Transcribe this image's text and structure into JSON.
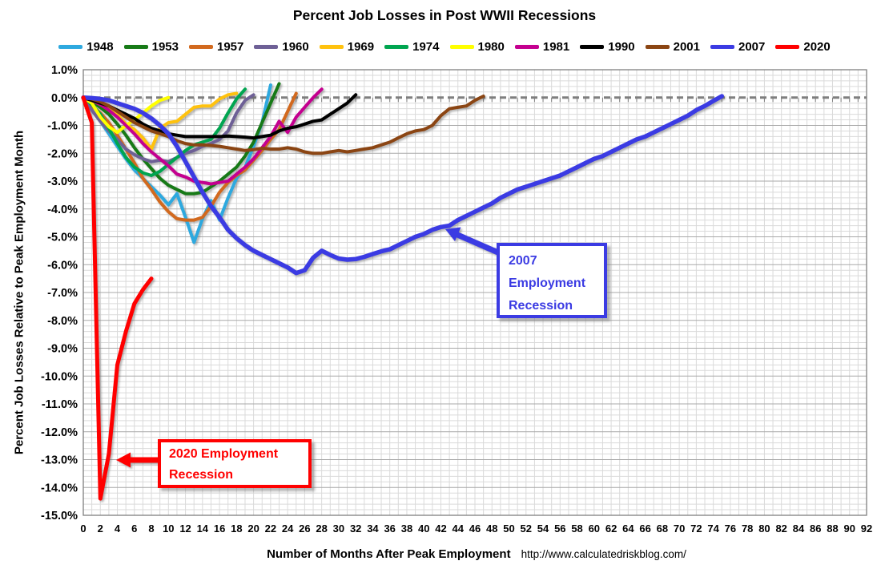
{
  "title": "Percent Job Losses in Post WWII Recessions",
  "x_axis": {
    "label": "Number of Months After Peak Employment",
    "source_url": "http://www.calculatedriskblog.com/",
    "tick_labels": [
      "0",
      "2",
      "4",
      "6",
      "8",
      "10",
      "12",
      "14",
      "16",
      "18",
      "20",
      "22",
      "24",
      "26",
      "28",
      "30",
      "32",
      "34",
      "36",
      "38",
      "40",
      "42",
      "44",
      "46",
      "48",
      "50",
      "52",
      "54",
      "56",
      "58",
      "60",
      "62",
      "64",
      "66",
      "68",
      "70",
      "72",
      "74",
      "76",
      "78",
      "80",
      "82",
      "84",
      "86",
      "88",
      "90",
      "92"
    ],
    "tick_step_months": 2
  },
  "y_axis": {
    "label": "Percent Job Losses Relative to Peak Employment Month",
    "tick_labels": [
      "1.0%",
      "0.0%",
      "-1.0%",
      "-2.0%",
      "-3.0%",
      "-4.0%",
      "-5.0%",
      "-6.0%",
      "-7.0%",
      "-8.0%",
      "-9.0%",
      "-10.0%",
      "-11.0%",
      "-12.0%",
      "-13.0%",
      "-14.0%",
      "-15.0%"
    ]
  },
  "annotations": [
    {
      "id": "2007",
      "label_lines": [
        "2007",
        "Employment",
        "Recession"
      ],
      "color": "#3B3BE3"
    },
    {
      "id": "2020",
      "label_lines": [
        "2020 Employment",
        "Recession"
      ],
      "color": "#FF0000"
    }
  ],
  "chart_data": {
    "type": "line",
    "title": "Percent Job Losses in Post WWII Recessions",
    "xlabel": "Number of Months After Peak Employment",
    "ylabel": "Percent Job Losses Relative to Peak Employment Month",
    "x_unit": "months_after_peak_employment",
    "xlim": [
      0,
      92
    ],
    "ylim": [
      -15.0,
      1.0
    ],
    "grid": true,
    "legend_position": "top",
    "zero_line": "dashed",
    "series": [
      {
        "name": "1948",
        "color": "#2EA9DF",
        "width": 4,
        "values": [
          0,
          -0.45,
          -0.85,
          -1.3,
          -1.75,
          -2.2,
          -2.6,
          -2.9,
          -3.2,
          -3.5,
          -3.85,
          -3.45,
          -4.3,
          -5.2,
          -4.35,
          -3.7,
          -4.4,
          -3.6,
          -2.9,
          -2.5,
          -1.75,
          -0.9,
          0.45
        ]
      },
      {
        "name": "1953",
        "color": "#177A17",
        "width": 4,
        "values": [
          0,
          -0.15,
          -0.35,
          -0.6,
          -0.95,
          -1.35,
          -1.8,
          -2.2,
          -2.55,
          -2.9,
          -3.15,
          -3.3,
          -3.45,
          -3.45,
          -3.4,
          -3.2,
          -3.0,
          -2.75,
          -2.5,
          -2.1,
          -1.6,
          -0.9,
          -0.2,
          0.5
        ]
      },
      {
        "name": "1957",
        "color": "#D2691E",
        "width": 4,
        "values": [
          0,
          -0.3,
          -0.55,
          -0.9,
          -1.35,
          -1.85,
          -2.35,
          -2.9,
          -3.3,
          -3.75,
          -4.1,
          -4.35,
          -4.4,
          -4.4,
          -4.3,
          -3.9,
          -3.4,
          -3.05,
          -2.8,
          -2.6,
          -2.25,
          -1.9,
          -1.5,
          -1.15,
          -0.5,
          0.15
        ]
      },
      {
        "name": "1960",
        "color": "#6E6096",
        "width": 4,
        "values": [
          0,
          -0.45,
          -0.85,
          -1.2,
          -1.5,
          -1.85,
          -2.05,
          -2.2,
          -2.3,
          -2.25,
          -2.3,
          -2.15,
          -2.0,
          -1.9,
          -1.75,
          -1.65,
          -1.5,
          -1.2,
          -0.55,
          -0.1,
          0.1
        ]
      },
      {
        "name": "1969",
        "color": "#FFC20E",
        "width": 4,
        "values": [
          0,
          -0.1,
          -0.25,
          -0.4,
          -0.6,
          -0.95,
          -1.15,
          -1.45,
          -1.85,
          -1.1,
          -0.9,
          -0.85,
          -0.6,
          -0.35,
          -0.3,
          -0.3,
          -0.05,
          0.1,
          0.15
        ]
      },
      {
        "name": "1974",
        "color": "#00A550",
        "width": 4,
        "values": [
          0,
          -0.25,
          -0.6,
          -1.1,
          -1.65,
          -2.15,
          -2.5,
          -2.7,
          -2.8,
          -2.65,
          -2.4,
          -2.15,
          -1.9,
          -1.7,
          -1.6,
          -1.5,
          -1.1,
          -0.55,
          -0.05,
          0.3
        ]
      },
      {
        "name": "1980",
        "color": "#FFFF00",
        "width": 4,
        "values": [
          0,
          -0.2,
          -0.7,
          -1.05,
          -1.25,
          -1.0,
          -0.8,
          -0.55,
          -0.3,
          -0.1,
          0.0
        ]
      },
      {
        "name": "1981",
        "color": "#C4008F",
        "width": 4,
        "values": [
          0,
          -0.1,
          -0.25,
          -0.45,
          -0.7,
          -1.0,
          -1.3,
          -1.65,
          -1.95,
          -2.2,
          -2.45,
          -2.75,
          -2.85,
          -3.0,
          -3.05,
          -3.1,
          -3.05,
          -3.0,
          -2.75,
          -2.5,
          -2.2,
          -1.8,
          -1.4,
          -0.85,
          -1.25,
          -0.7,
          -0.35,
          0.0,
          0.3
        ]
      },
      {
        "name": "1990",
        "color": "#000000",
        "width": 4,
        "values": [
          0,
          -0.1,
          -0.2,
          -0.3,
          -0.45,
          -0.6,
          -0.75,
          -0.95,
          -1.1,
          -1.2,
          -1.3,
          -1.35,
          -1.4,
          -1.4,
          -1.4,
          -1.4,
          -1.4,
          -1.38,
          -1.4,
          -1.42,
          -1.45,
          -1.4,
          -1.35,
          -1.2,
          -1.1,
          -1.05,
          -0.95,
          -0.85,
          -0.8,
          -0.6,
          -0.4,
          -0.2,
          0.1
        ]
      },
      {
        "name": "2001",
        "color": "#8B4513",
        "width": 4,
        "values": [
          0,
          -0.05,
          -0.15,
          -0.3,
          -0.5,
          -0.7,
          -0.9,
          -1.05,
          -1.2,
          -1.3,
          -1.4,
          -1.55,
          -1.65,
          -1.7,
          -1.7,
          -1.72,
          -1.75,
          -1.8,
          -1.85,
          -1.9,
          -1.87,
          -1.82,
          -1.85,
          -1.85,
          -1.8,
          -1.85,
          -1.95,
          -2.0,
          -2.0,
          -1.95,
          -1.9,
          -1.95,
          -1.9,
          -1.85,
          -1.8,
          -1.7,
          -1.6,
          -1.45,
          -1.3,
          -1.2,
          -1.15,
          -1.0,
          -0.65,
          -0.4,
          -0.35,
          -0.3,
          -0.1,
          0.05
        ]
      },
      {
        "name": "2007",
        "color": "#3B3BE3",
        "width": 5.5,
        "values": [
          0,
          -0.02,
          -0.05,
          -0.1,
          -0.2,
          -0.3,
          -0.4,
          -0.55,
          -0.75,
          -1.0,
          -1.3,
          -1.75,
          -2.3,
          -2.85,
          -3.4,
          -3.9,
          -4.3,
          -4.75,
          -5.05,
          -5.3,
          -5.5,
          -5.65,
          -5.8,
          -5.95,
          -6.1,
          -6.3,
          -6.2,
          -5.75,
          -5.5,
          -5.65,
          -5.78,
          -5.82,
          -5.8,
          -5.72,
          -5.62,
          -5.52,
          -5.45,
          -5.3,
          -5.15,
          -5.0,
          -4.9,
          -4.75,
          -4.65,
          -4.6,
          -4.4,
          -4.25,
          -4.1,
          -3.95,
          -3.8,
          -3.6,
          -3.45,
          -3.3,
          -3.2,
          -3.1,
          -3.0,
          -2.9,
          -2.8,
          -2.65,
          -2.5,
          -2.35,
          -2.2,
          -2.1,
          -1.95,
          -1.8,
          -1.65,
          -1.5,
          -1.4,
          -1.25,
          -1.1,
          -0.95,
          -0.8,
          -0.65,
          -0.45,
          -0.3,
          -0.12,
          0.05
        ]
      },
      {
        "name": "2020",
        "color": "#FF0000",
        "width": 5,
        "values": [
          0,
          -0.9,
          -14.4,
          -12.8,
          -9.6,
          -8.4,
          -7.4,
          -6.9,
          -6.5
        ]
      }
    ]
  }
}
